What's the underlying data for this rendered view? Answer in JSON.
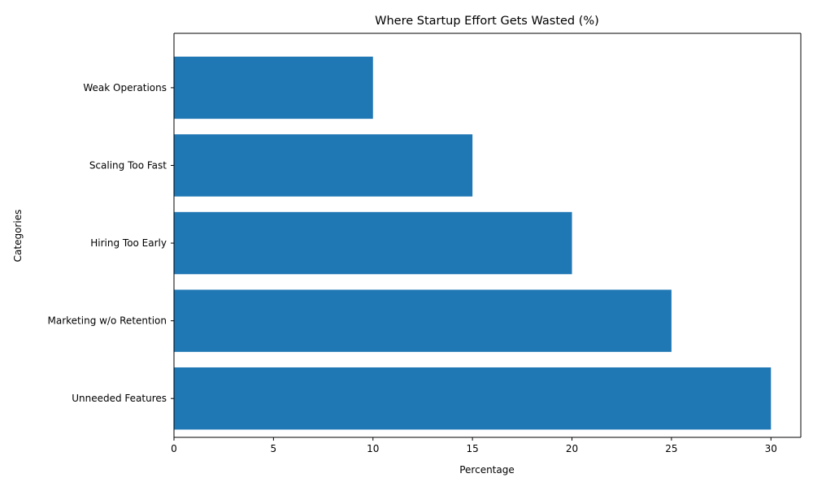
{
  "chart_data": {
    "type": "hbar",
    "title": "Where Startup Effort Gets Wasted (%)",
    "x_label": "Percentage",
    "y_label": "Categories",
    "categories": [
      "Unneeded Features",
      "Marketing w/o Retention",
      "Hiring Too Early",
      "Scaling Too Fast",
      "Weak Operations"
    ],
    "values": [
      30,
      25,
      20,
      15,
      10
    ],
    "color": "#1f77b4",
    "xlim": [
      0,
      31.5
    ],
    "xticks": [
      0,
      5,
      10,
      15,
      20,
      25,
      30
    ]
  }
}
